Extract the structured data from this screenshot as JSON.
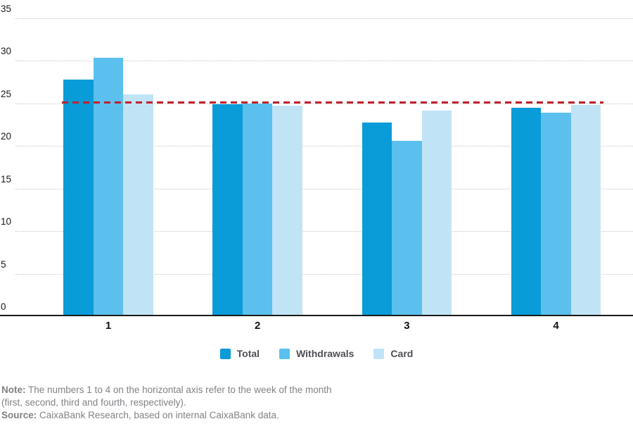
{
  "chart_data": {
    "type": "bar",
    "title": "",
    "xlabel": "",
    "ylabel": "",
    "categories": [
      "1",
      "2",
      "3",
      "4"
    ],
    "series": [
      {
        "name": "Total",
        "color": "#0a9bd9",
        "values": [
          27.8,
          24.9,
          22.7,
          24.5
        ]
      },
      {
        "name": "Withdrawals",
        "color": "#5bc0ed",
        "values": [
          30.3,
          25.0,
          20.6,
          23.9
        ]
      },
      {
        "name": "Card",
        "color": "#c1e3f6",
        "values": [
          26.0,
          24.7,
          24.1,
          24.8
        ]
      }
    ],
    "reference_line": {
      "value": 25.1,
      "color": "#c1202c",
      "style": "dashed"
    },
    "ylim": [
      0,
      35
    ],
    "yticks": [
      0,
      5,
      10,
      15,
      20,
      25,
      30,
      35
    ],
    "grid": "horizontal-dotted",
    "legend_position": "bottom"
  },
  "legend": {
    "items": [
      {
        "label": "Total"
      },
      {
        "label": "Withdrawals"
      },
      {
        "label": "Card"
      }
    ]
  },
  "note": {
    "label": "Note:",
    "line1": "The numbers 1 to 4 on the horizontal axis refer to the week of the month",
    "line2": "(first, second, third and fourth, respectively)."
  },
  "source": {
    "label": "Source:",
    "text": "CaixaBank Research, based on internal CaixaBank data."
  },
  "colors": {
    "axis": "#1a1a1a",
    "grid": "#c6c6c6",
    "tick_text": "#1a1a1a",
    "note_text": "#808285",
    "legend_text": "#4d4f53",
    "background": "#ffffff"
  }
}
